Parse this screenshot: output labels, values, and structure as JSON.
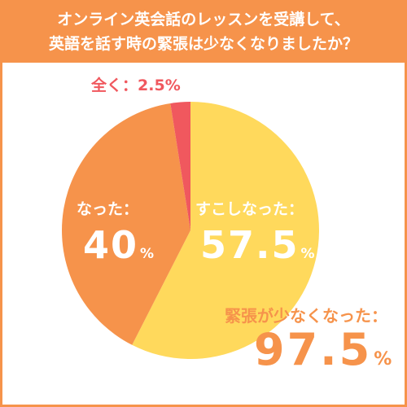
{
  "header": {
    "line1": "オンライン英会話のレッスンを受講して、",
    "line2": "英語を話す時の緊張は少なくなりましたか？"
  },
  "chart_data": {
    "type": "pie",
    "slices": [
      {
        "label": "すこしなった：",
        "value": 57.5,
        "value_text": "57.5",
        "unit": "%",
        "color": "#FFD95C"
      },
      {
        "label": "なった：",
        "value": 40,
        "value_text": "40",
        "unit": "%",
        "color": "#F6934B"
      },
      {
        "label": "全く：",
        "value": 2.5,
        "value_text": "2.5",
        "unit": "%",
        "color": "#F0585E"
      }
    ],
    "summary": {
      "label": "緊張が少なくなった：",
      "value_text": "97.5",
      "unit": "%"
    }
  },
  "colors": {
    "accent": "#F6934B",
    "yellow": "#FFD95C",
    "red": "#F0585E"
  }
}
